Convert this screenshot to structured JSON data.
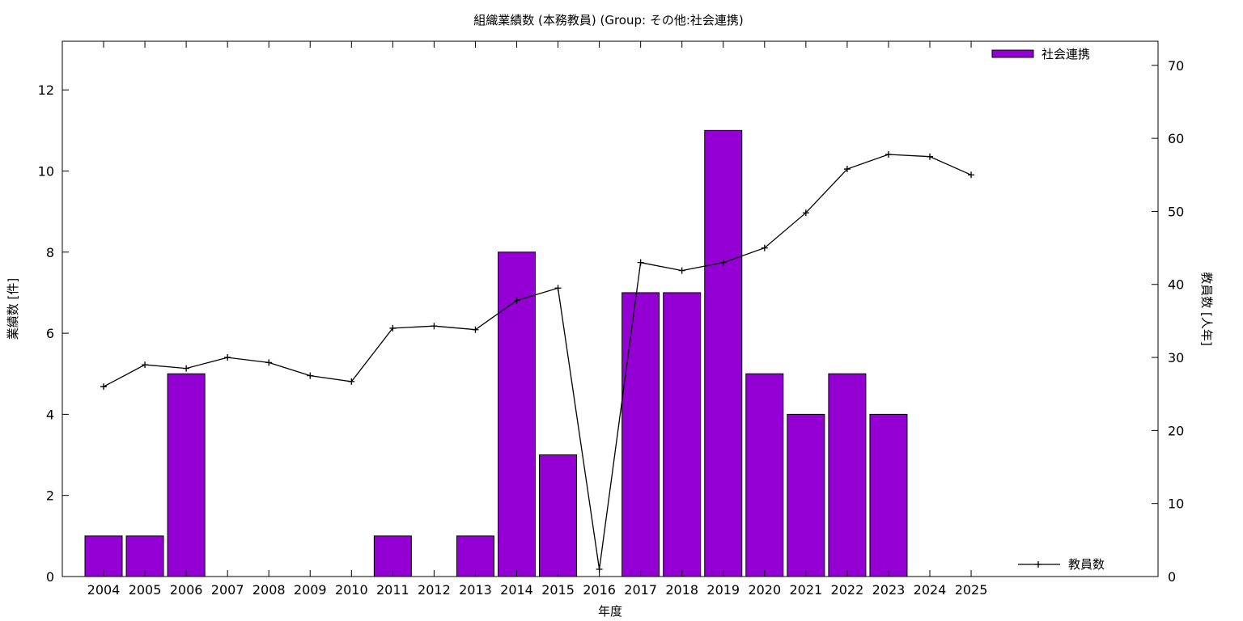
{
  "chart_data": {
    "type": "bar",
    "title": "組織業績数 (本務教員) (Group: その他:社会連携)",
    "xlabel": "年度",
    "ylabel": "業績数 [件]",
    "y2label": "教員数 [人年]",
    "categories": [
      "2004",
      "2005",
      "2006",
      "2007",
      "2008",
      "2009",
      "2010",
      "2011",
      "2012",
      "2013",
      "2014",
      "2015",
      "2016",
      "2017",
      "2018",
      "2019",
      "2020",
      "2021",
      "2022",
      "2023",
      "2024",
      "2025"
    ],
    "series": [
      {
        "name": "社会連携",
        "type": "bar",
        "axis": "left",
        "color": "#9400d3",
        "values": [
          1,
          1,
          5,
          0,
          0,
          0,
          0,
          1,
          0,
          1,
          8,
          3,
          0,
          7,
          7,
          11,
          5,
          4,
          5,
          4,
          0,
          null
        ]
      },
      {
        "name": "教員数",
        "type": "line",
        "axis": "right",
        "color": "#000000",
        "marker": "plus",
        "values": [
          26,
          29,
          28.5,
          30,
          29.3,
          27.5,
          26.7,
          34,
          34.3,
          33.8,
          37.8,
          39.5,
          1,
          43,
          41.9,
          43,
          45,
          49.8,
          55.8,
          57.8,
          57.5,
          55
        ]
      }
    ],
    "ylim": [
      0,
      13.2
    ],
    "yticks": [
      0,
      2,
      4,
      6,
      8,
      10,
      12
    ],
    "y2lim": [
      0,
      73.3
    ],
    "y2ticks": [
      0,
      10,
      20,
      30,
      40,
      50,
      60,
      70
    ],
    "grid": false,
    "legend": [
      "top-right",
      "bottom-right"
    ]
  }
}
